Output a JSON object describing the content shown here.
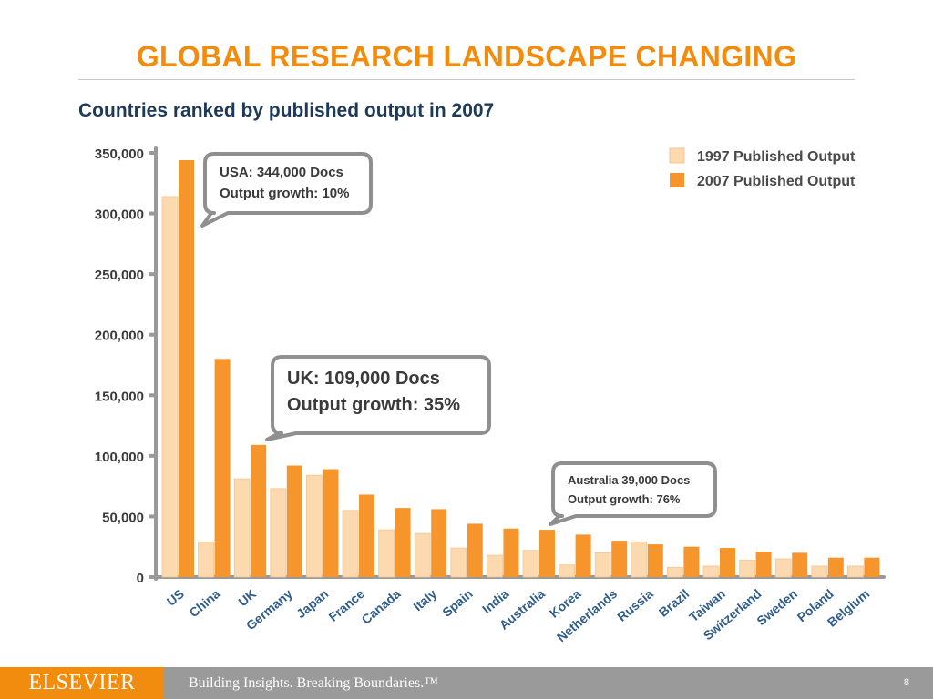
{
  "slide": {
    "title": "GLOBAL RESEARCH LANDSCAPE CHANGING",
    "subtitle": "Countries ranked by published output in 2007",
    "page_number": "8"
  },
  "footer": {
    "brand": "ELSEVIER",
    "tagline": "Building Insights. Breaking Boundaries.™"
  },
  "callouts": {
    "usa": [
      "USA: 344,000 Docs",
      "Output growth: 10%"
    ],
    "uk": [
      "UK: 109,000 Docs",
      "Output growth: 35%"
    ],
    "australia": [
      "Australia 39,000 Docs",
      "Output growth: 76%"
    ]
  },
  "chart_data": {
    "type": "bar",
    "title": "Countries ranked by published output in 2007",
    "xlabel": "",
    "ylabel": "",
    "ylim": [
      0,
      350000
    ],
    "yticks": [
      "0",
      "50,000",
      "100,000",
      "150,000",
      "200,000",
      "250,000",
      "300,000",
      "350,000"
    ],
    "ytick_values": [
      0,
      50000,
      100000,
      150000,
      200000,
      250000,
      300000,
      350000
    ],
    "grid": false,
    "legend_position": "top-right",
    "categories": [
      "US",
      "China",
      "UK",
      "Germany",
      "Japan",
      "France",
      "Canada",
      "Italy",
      "Spain",
      "India",
      "Australia",
      "Korea",
      "Netherlands",
      "Russia",
      "Brazil",
      "Taiwan",
      "Switzerland",
      "Sweden",
      "Poland",
      "Belgium"
    ],
    "series": [
      {
        "name": "1997 Published Output",
        "color": "#fdd9b0",
        "values": [
          314000,
          29000,
          81000,
          73000,
          84000,
          55000,
          39000,
          36000,
          24000,
          18000,
          22000,
          10000,
          20000,
          29000,
          8000,
          9000,
          14000,
          15000,
          9000,
          9000
        ]
      },
      {
        "name": "2007 Published Output",
        "color": "#f7952d",
        "values": [
          344000,
          180000,
          109000,
          92000,
          89000,
          68000,
          57000,
          56000,
          44000,
          40000,
          39000,
          35000,
          30000,
          27000,
          25000,
          24000,
          21000,
          20000,
          16000,
          16000
        ]
      }
    ]
  }
}
